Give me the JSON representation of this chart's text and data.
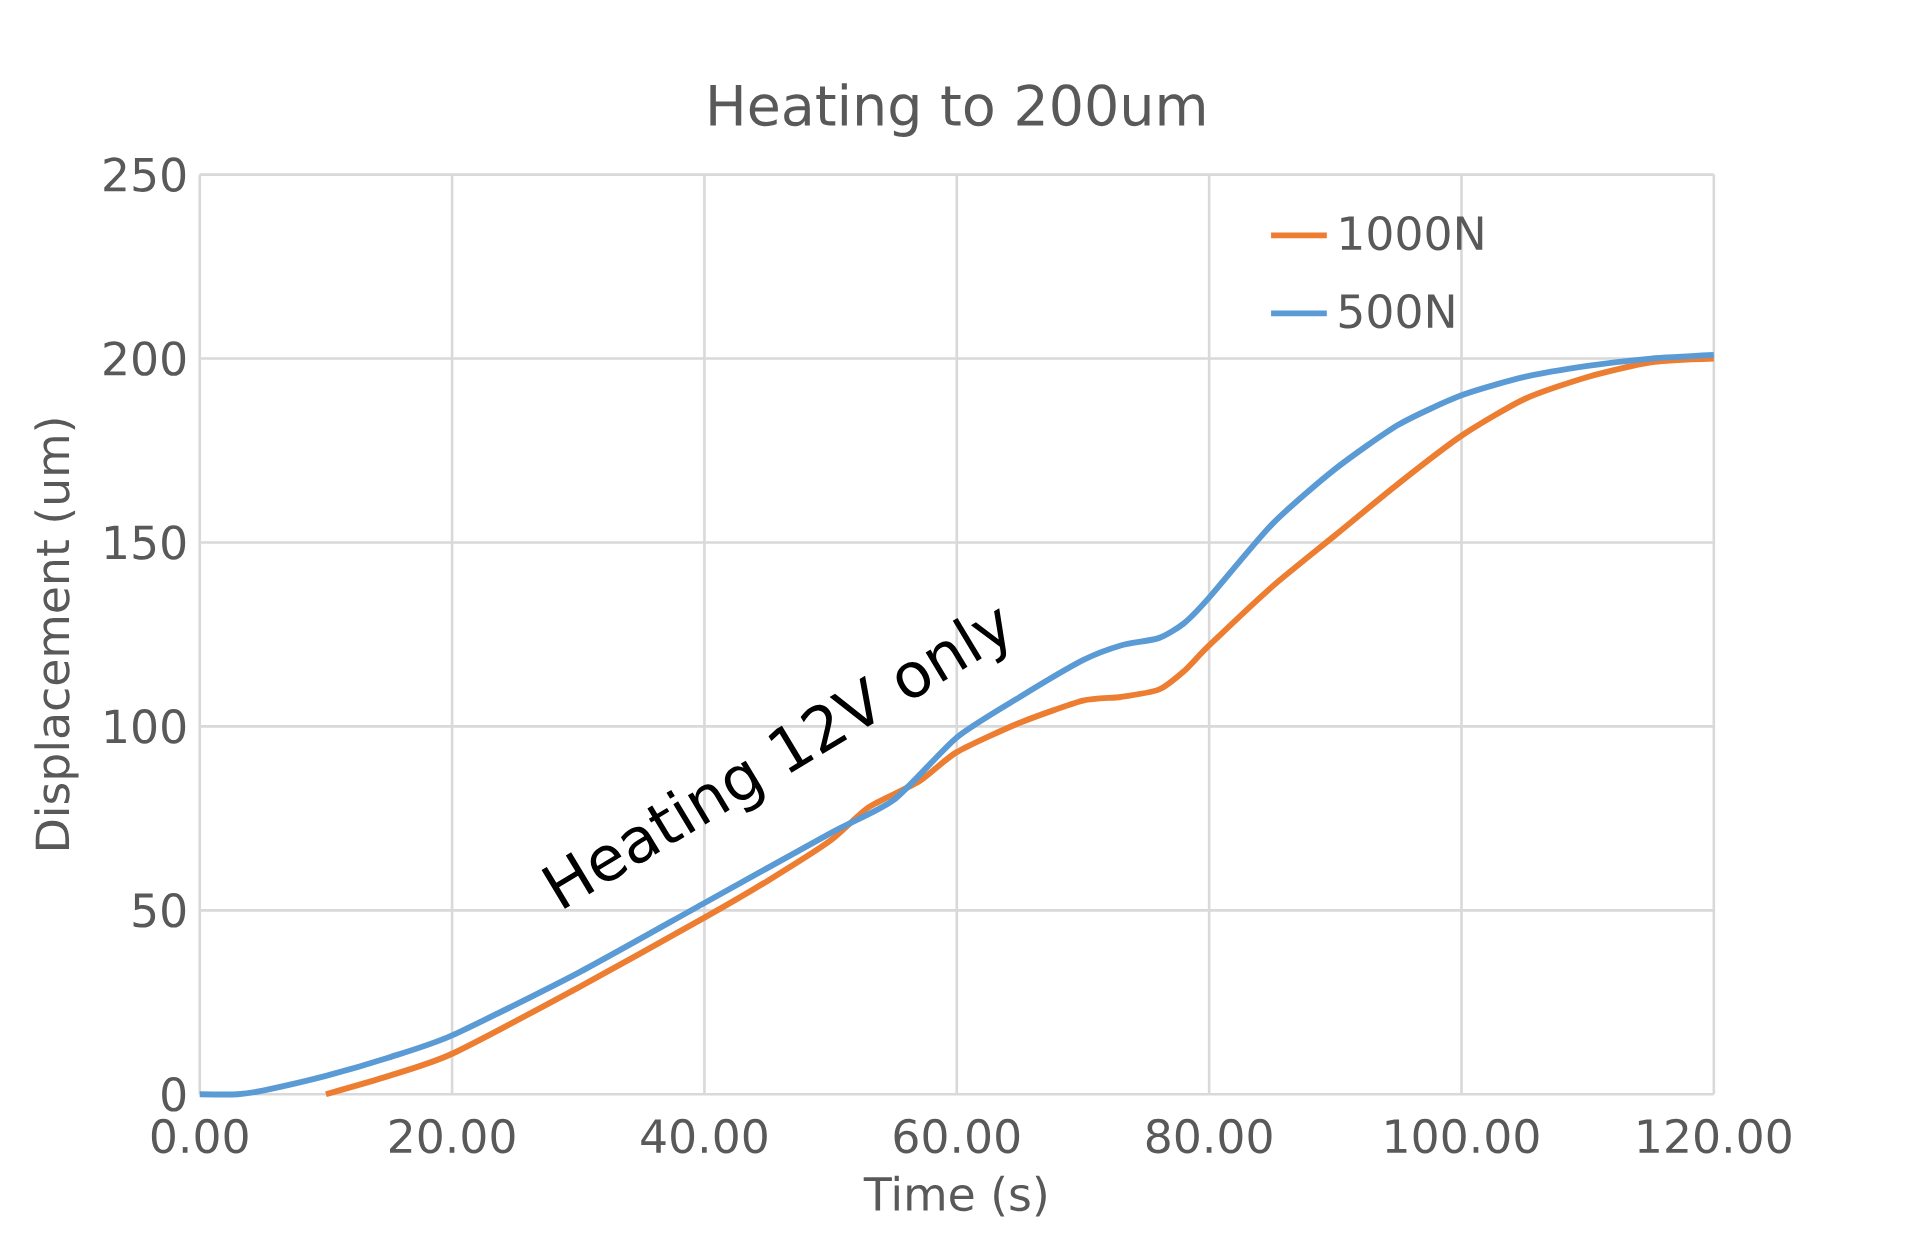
{
  "chart_data": {
    "type": "line",
    "title": "Heating to 200um",
    "xlabel": "Time (s)",
    "ylabel": "Displacement (um)",
    "annotations": [
      "Heating 12V only"
    ],
    "series": [
      {
        "name": "1000N",
        "color": "#ed7d31",
        "x": [
          10,
          15,
          20,
          30,
          40,
          45,
          50,
          53,
          57,
          60,
          65,
          70,
          73,
          76,
          78,
          80,
          85,
          90,
          95,
          100,
          105,
          110,
          115,
          120
        ],
        "values": [
          0,
          5,
          11,
          29,
          48,
          58,
          69,
          78,
          85,
          93,
          101,
          107,
          108,
          110,
          115,
          122,
          138,
          152,
          166,
          179,
          189,
          195,
          199,
          200
        ]
      },
      {
        "name": "500N",
        "color": "#5b9bd5",
        "x": [
          0,
          3,
          5,
          10,
          15,
          20,
          30,
          40,
          50,
          55,
          60,
          65,
          70,
          73,
          76,
          78,
          80,
          85,
          90,
          95,
          100,
          105,
          110,
          115,
          120
        ],
        "values": [
          0,
          0,
          1,
          5,
          10,
          16,
          33,
          52,
          71,
          80,
          97,
          108,
          118,
          122,
          124,
          128,
          135,
          155,
          170,
          182,
          190,
          195,
          198,
          200,
          201
        ]
      }
    ],
    "xlim": [
      0,
      120
    ],
    "ylim": [
      0,
      250
    ],
    "xticks": [
      {
        "value": 0,
        "label": "0.00"
      },
      {
        "value": 20,
        "label": "20.00"
      },
      {
        "value": 40,
        "label": "40.00"
      },
      {
        "value": 60,
        "label": "60.00"
      },
      {
        "value": 80,
        "label": "80.00"
      },
      {
        "value": 100,
        "label": "100.00"
      },
      {
        "value": 120,
        "label": "120.00"
      }
    ],
    "yticks": [
      0,
      50,
      100,
      150,
      200,
      250
    ],
    "grid": true,
    "legend": "top right",
    "marker": "none",
    "line_style": "solid"
  }
}
